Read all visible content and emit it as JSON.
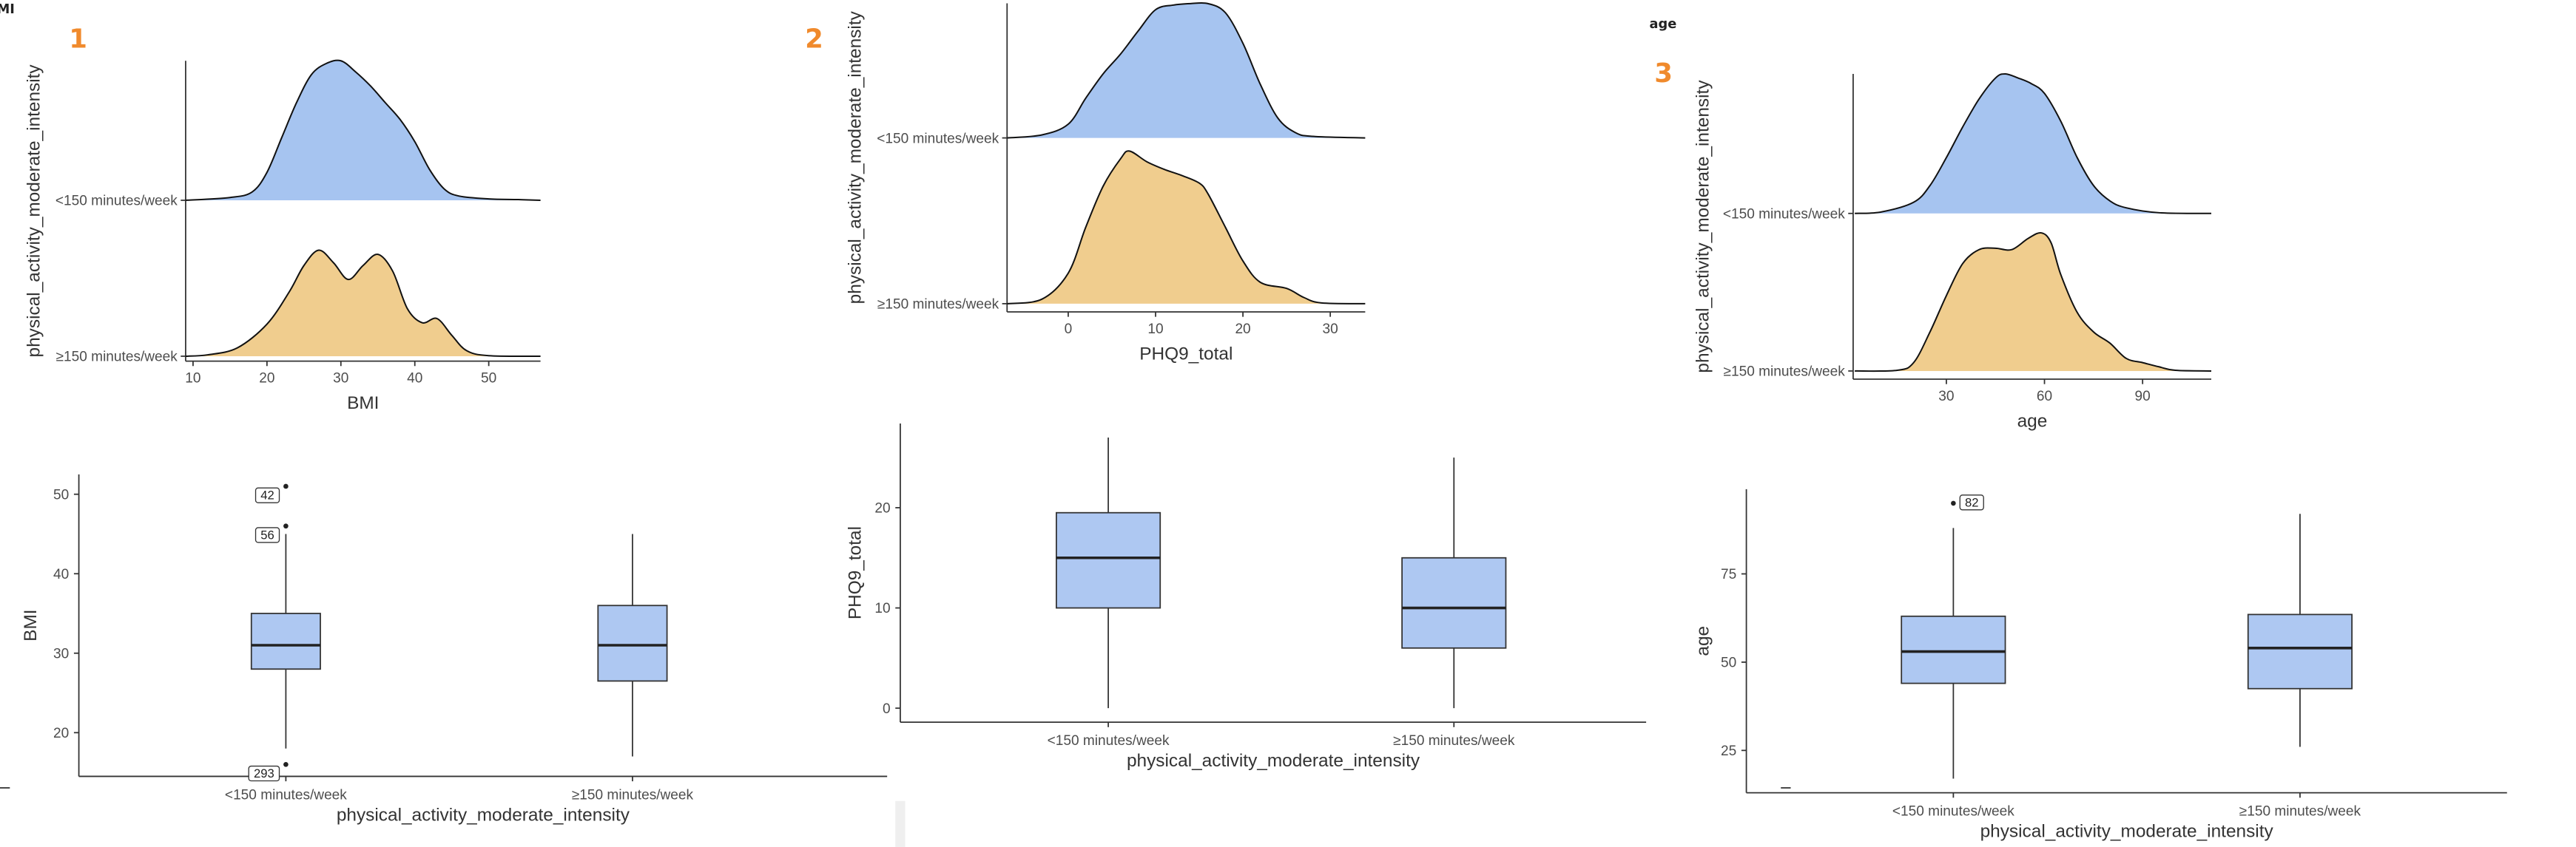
{
  "header_fragments": {
    "left": "MI",
    "right": "age"
  },
  "panel_numbers": [
    "1",
    "2",
    "3"
  ],
  "colors": {
    "density_top": "#a6c4f0",
    "density_bottom": "#f0cd8e",
    "box_fill": "#aec8f2",
    "panel_number": "#f08a2c"
  },
  "chart_data": [
    {
      "type": "density_ridge",
      "panel": "1",
      "xlabel": "BMI",
      "ylabel": "physical_activity_moderate_intensity",
      "xticks": [
        10,
        20,
        30,
        40,
        50
      ],
      "xlim": [
        9,
        57
      ],
      "categories": [
        "<150 minutes/week",
        "≥150 minutes/week"
      ],
      "series": [
        {
          "category": "<150 minutes/week",
          "x": [
            9,
            15,
            18,
            20,
            22,
            24,
            26,
            28,
            30,
            32,
            34,
            36,
            38,
            40,
            42,
            44,
            46,
            50,
            54,
            57
          ],
          "density": [
            0,
            0.02,
            0.06,
            0.2,
            0.45,
            0.7,
            0.9,
            0.98,
            1.0,
            0.92,
            0.82,
            0.7,
            0.58,
            0.42,
            0.22,
            0.08,
            0.03,
            0.01,
            0.005,
            0
          ]
        },
        {
          "category": "≥150 minutes/week",
          "x": [
            9,
            12,
            16,
            20,
            23,
            25,
            27,
            29,
            31,
            33,
            35,
            37,
            39,
            41,
            43,
            45,
            47,
            50,
            57
          ],
          "density": [
            0,
            0.01,
            0.06,
            0.23,
            0.46,
            0.65,
            0.76,
            0.67,
            0.55,
            0.65,
            0.73,
            0.61,
            0.34,
            0.24,
            0.27,
            0.15,
            0.04,
            0.004,
            0
          ]
        }
      ]
    },
    {
      "type": "box",
      "panel": "1",
      "xlabel": "physical_activity_moderate_intensity",
      "ylabel": "BMI",
      "yticks": [
        20,
        30,
        40,
        50
      ],
      "ylim": [
        14.5,
        52.5
      ],
      "categories": [
        "<150 minutes/week",
        "≥150 minutes/week"
      ],
      "boxes": [
        {
          "q1": 28,
          "median": 31,
          "q3": 35,
          "whisker_low": 18,
          "whisker_high": 45,
          "outliers": [
            {
              "value": 51,
              "label": "42"
            },
            {
              "value": 46,
              "label": "56"
            },
            {
              "value": 16,
              "label": "293"
            }
          ]
        },
        {
          "q1": 26.5,
          "median": 31,
          "q3": 36,
          "whisker_low": 17,
          "whisker_high": 45,
          "outliers": []
        }
      ]
    },
    {
      "type": "density_ridge",
      "panel": "2",
      "xlabel": "PHQ9_total",
      "ylabel": "physical_activity_moderate_intensity",
      "xticks": [
        0,
        10,
        20,
        30
      ],
      "xlim": [
        -7,
        34
      ],
      "categories": [
        "<150 minutes/week",
        "≥150 minutes/week"
      ],
      "series": [
        {
          "category": "<150 minutes/week",
          "x": [
            -7,
            -3,
            0,
            2,
            4,
            6,
            8,
            10,
            12,
            14,
            16,
            18,
            20,
            22,
            24,
            26,
            28,
            34
          ],
          "density": [
            0,
            0.02,
            0.09,
            0.26,
            0.42,
            0.55,
            0.7,
            0.84,
            0.87,
            0.88,
            0.88,
            0.82,
            0.62,
            0.35,
            0.13,
            0.035,
            0.01,
            0
          ]
        },
        {
          "category": "≥150 minutes/week",
          "x": [
            -7,
            -3,
            0,
            2,
            4,
            6,
            7,
            9,
            11,
            13,
            15,
            16,
            18,
            20,
            22,
            25,
            27,
            29,
            34
          ],
          "density": [
            0,
            0.03,
            0.2,
            0.5,
            0.77,
            0.95,
            1.0,
            0.93,
            0.88,
            0.84,
            0.79,
            0.72,
            0.5,
            0.28,
            0.14,
            0.1,
            0.04,
            0.005,
            0
          ]
        }
      ]
    },
    {
      "type": "box",
      "panel": "2",
      "xlabel": "physical_activity_moderate_intensity",
      "ylabel": "PHQ9_total",
      "yticks": [
        0,
        10,
        20
      ],
      "ylim": [
        -1.4,
        28.4
      ],
      "categories": [
        "<150 minutes/week",
        "≥150 minutes/week"
      ],
      "boxes": [
        {
          "q1": 10,
          "median": 15,
          "q3": 19.5,
          "whisker_low": 0,
          "whisker_high": 27,
          "outliers": []
        },
        {
          "q1": 6,
          "median": 10,
          "q3": 15,
          "whisker_low": 0,
          "whisker_high": 25,
          "outliers": []
        }
      ]
    },
    {
      "type": "density_ridge",
      "panel": "3",
      "xlabel": "age",
      "ylabel": "physical_activity_moderate_intensity",
      "xticks": [
        30,
        60,
        90
      ],
      "xlim": [
        1.5,
        111
      ],
      "categories": [
        "<150 minutes/week",
        "≥150 minutes/week"
      ],
      "series": [
        {
          "category": "<150 minutes/week",
          "x": [
            2,
            10,
            20,
            25,
            30,
            35,
            40,
            45,
            48,
            52,
            56,
            60,
            65,
            70,
            75,
            80,
            85,
            95,
            111
          ],
          "density": [
            0,
            0.01,
            0.08,
            0.2,
            0.4,
            0.62,
            0.82,
            0.97,
            1.0,
            0.97,
            0.93,
            0.86,
            0.66,
            0.4,
            0.2,
            0.09,
            0.04,
            0.005,
            0
          ]
        },
        {
          "category": "≥150 minutes/week",
          "x": [
            2,
            15,
            20,
            25,
            30,
            35,
            40,
            45,
            50,
            55,
            59,
            62,
            65,
            70,
            75,
            80,
            85,
            90,
            95,
            100,
            111
          ],
          "density": [
            0,
            0.005,
            0.06,
            0.28,
            0.54,
            0.77,
            0.87,
            0.88,
            0.87,
            0.95,
            0.99,
            0.92,
            0.69,
            0.42,
            0.28,
            0.2,
            0.09,
            0.06,
            0.03,
            0.005,
            0
          ]
        }
      ]
    },
    {
      "type": "box",
      "panel": "3",
      "xlabel": "physical_activity_moderate_intensity",
      "ylabel": "age",
      "yticks": [
        25,
        50,
        75
      ],
      "ylim": [
        13,
        99
      ],
      "categories": [
        "<150 minutes/week",
        "≥150 minutes/week"
      ],
      "boxes": [
        {
          "q1": 44,
          "median": 53,
          "q3": 63,
          "whisker_low": 17,
          "whisker_high": 88,
          "outliers": [
            {
              "value": 95,
              "label": "82"
            }
          ]
        },
        {
          "q1": 42.5,
          "median": 54,
          "q3": 63.5,
          "whisker_low": 26,
          "whisker_high": 92,
          "outliers": []
        }
      ]
    }
  ]
}
